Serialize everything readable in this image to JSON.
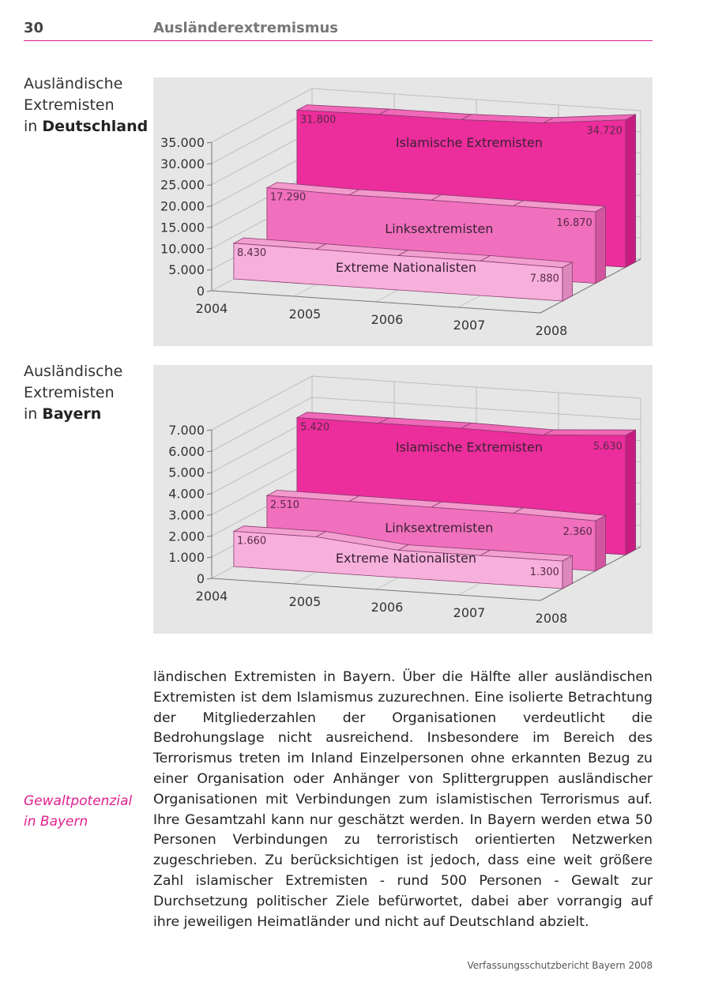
{
  "header": {
    "page_number": "30",
    "section_title": "Ausländerextremismus"
  },
  "chart_headings": [
    {
      "line1": "Ausländische",
      "line2": "Extremisten",
      "prefix": "in ",
      "bold": "Deutschland"
    },
    {
      "line1": "Ausländische",
      "line2": "Extremisten",
      "prefix": "in ",
      "bold": "Bayern"
    }
  ],
  "colors": {
    "accent": "#e0208e",
    "islam": "#ec2d9c",
    "links": "#f06cbb",
    "nat": "#f6aedb",
    "panel": "#e6e6e6"
  },
  "chart_data": [
    {
      "type": "area",
      "title": "Ausländische Extremisten in Deutschland",
      "categories": [
        "2004",
        "2005",
        "2006",
        "2007",
        "2008"
      ],
      "ylim": [
        0,
        35000
      ],
      "yticks": [
        "0",
        "5.000",
        "10.000",
        "15.000",
        "20.000",
        "25.000",
        "30.000",
        "35.000"
      ],
      "ytick_values": [
        0,
        5000,
        10000,
        15000,
        20000,
        25000,
        30000,
        35000
      ],
      "series": [
        {
          "name": "Islamische Extremisten",
          "values": [
            31800,
            32100,
            32150,
            32700,
            34720
          ],
          "first_label": "31.800",
          "last_label": "34.720"
        },
        {
          "name": "Linksextremisten",
          "values": [
            17290,
            16900,
            17000,
            16950,
            16870
          ],
          "first_label": "17.290",
          "last_label": "16.870"
        },
        {
          "name": "Extreme Nationalisten",
          "values": [
            8430,
            8300,
            8100,
            8150,
            7880
          ],
          "first_label": "8.430",
          "last_label": "7.880"
        }
      ]
    },
    {
      "type": "area",
      "title": "Ausländische Extremisten in Bayern",
      "categories": [
        "2004",
        "2005",
        "2006",
        "2007",
        "2008"
      ],
      "ylim": [
        0,
        7000
      ],
      "yticks": [
        "0",
        "1.000",
        "2.000",
        "3.000",
        "4.000",
        "5.000",
        "6.000",
        "7.000"
      ],
      "ytick_values": [
        0,
        1000,
        2000,
        3000,
        4000,
        5000,
        6000,
        7000
      ],
      "series": [
        {
          "name": "Islamische Extremisten",
          "values": [
            5420,
            5420,
            5440,
            5380,
            5630
          ],
          "first_label": "5.420",
          "last_label": "5.630"
        },
        {
          "name": "Linksextremisten",
          "values": [
            2510,
            2500,
            2480,
            2460,
            2360
          ],
          "first_label": "2.510",
          "last_label": "2.360"
        },
        {
          "name": "Extreme Nationalisten",
          "values": [
            1660,
            1660,
            1290,
            1300,
            1300
          ],
          "first_label": "1.660",
          "last_label": "1.300"
        }
      ]
    }
  ],
  "margin_note": {
    "line1": "Gewaltpotenzial",
    "line2": "in Bayern"
  },
  "body_text": "ländischen Extremisten in Bayern. Über die Hälfte aller ausländischen Extremisten ist dem Islamismus zuzurechnen. Eine isolierte Betrachtung der Mitgliederzahlen der Organisationen verdeutlicht die Bedrohungslage nicht ausreichend. Insbesondere im Bereich des Terrorismus treten im Inland Einzelpersonen ohne erkannten Bezug zu einer Organisation oder Anhänger von Splittergruppen ausländischer Organisationen mit Verbindungen zum islamistischen Terrorismus auf. Ihre Gesamtzahl kann nur geschätzt werden. In Bayern werden etwa 50 Personen Verbindungen zu terroristisch orientierten Netzwerken zugeschrieben. Zu berücksichtigen ist jedoch, dass eine weit größere Zahl islamischer Extremisten - rund 500 Personen - Gewalt zur Durchsetzung politischer Ziele befürwortet, dabei aber vorrangig auf ihre jeweiligen Heimatländer und nicht auf Deutschland abzielt.",
  "footer": "Verfassungsschutzbericht Bayern 2008"
}
